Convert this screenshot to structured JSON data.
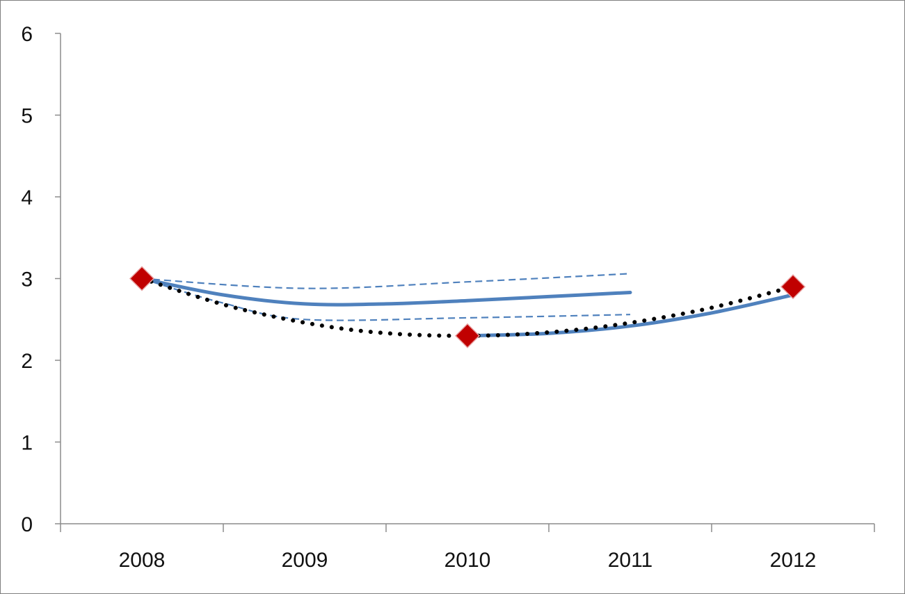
{
  "chart_data": {
    "type": "line",
    "categories": [
      "2008",
      "2009",
      "2010",
      "2011",
      "2012"
    ],
    "ylim": [
      0,
      6
    ],
    "yticks": [
      "0",
      "1",
      "2",
      "3",
      "4",
      "5",
      "6"
    ],
    "grid": false,
    "legend": "none",
    "series": [
      {
        "style": "diamond-markers",
        "color": "#c00000",
        "points": [
          {
            "x": 2008.0,
            "y": 3.0
          },
          {
            "x": 2010.0,
            "y": 2.3
          },
          {
            "x": 2012.0,
            "y": 2.9
          }
        ]
      },
      {
        "style": "dotted",
        "color": "#000000",
        "points": [
          {
            "x": 2008.0,
            "y": 3.0
          },
          {
            "x": 2008.6,
            "y": 2.63
          },
          {
            "x": 2009.3,
            "y": 2.37
          },
          {
            "x": 2010.0,
            "y": 2.3
          },
          {
            "x": 2010.7,
            "y": 2.38
          },
          {
            "x": 2011.4,
            "y": 2.6
          },
          {
            "x": 2012.0,
            "y": 2.9
          }
        ]
      },
      {
        "style": "solid",
        "color": "#4f81bd",
        "points": [
          {
            "x": 2008.0,
            "y": 3.0
          },
          {
            "x": 2008.5,
            "y": 2.8
          },
          {
            "x": 2009.0,
            "y": 2.69
          },
          {
            "x": 2009.5,
            "y": 2.69
          },
          {
            "x": 2010.0,
            "y": 2.73
          },
          {
            "x": 2010.5,
            "y": 2.78
          },
          {
            "x": 2011.0,
            "y": 2.83
          }
        ]
      },
      {
        "style": "dashed",
        "color": "#4f81bd",
        "points": [
          {
            "x": 2008.0,
            "y": 3.0
          },
          {
            "x": 2009.0,
            "y": 2.88
          },
          {
            "x": 2010.0,
            "y": 2.96
          },
          {
            "x": 2011.0,
            "y": 3.06
          }
        ]
      },
      {
        "style": "dashed",
        "color": "#4f81bd",
        "points": [
          {
            "x": 2008.0,
            "y": 3.0
          },
          {
            "x": 2008.5,
            "y": 2.7
          },
          {
            "x": 2009.0,
            "y": 2.5
          },
          {
            "x": 2010.0,
            "y": 2.52
          },
          {
            "x": 2011.0,
            "y": 2.56
          }
        ]
      },
      {
        "style": "solid",
        "color": "#4f81bd",
        "points": [
          {
            "x": 2010.0,
            "y": 2.3
          },
          {
            "x": 2010.5,
            "y": 2.33
          },
          {
            "x": 2011.0,
            "y": 2.42
          },
          {
            "x": 2011.5,
            "y": 2.58
          },
          {
            "x": 2012.0,
            "y": 2.8
          }
        ]
      }
    ]
  }
}
